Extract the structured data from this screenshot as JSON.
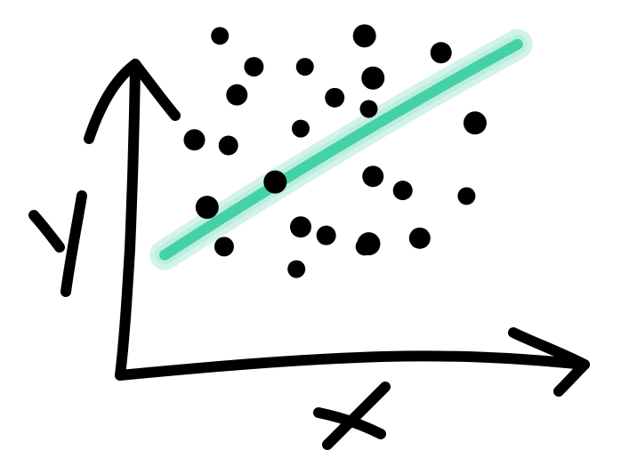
{
  "chart_data": {
    "type": "scatter",
    "style": "hand-drawn sketch",
    "xlabel": "X",
    "ylabel": "Y",
    "title": "",
    "xlim": [
      0,
      10
    ],
    "ylim": [
      0,
      10
    ],
    "grid": false,
    "legend": "none",
    "point_color": "#000000",
    "trend_color": "#44d1a8",
    "trend_glow_color": "#b9ecdc",
    "axis_color": "#000000",
    "points": [
      {
        "x": 2.2,
        "y": 9.8
      },
      {
        "x": 5.6,
        "y": 9.8
      },
      {
        "x": 7.4,
        "y": 9.2
      },
      {
        "x": 3.0,
        "y": 8.7
      },
      {
        "x": 4.2,
        "y": 8.7
      },
      {
        "x": 5.8,
        "y": 8.3
      },
      {
        "x": 2.6,
        "y": 7.7
      },
      {
        "x": 4.9,
        "y": 7.6
      },
      {
        "x": 5.7,
        "y": 7.2
      },
      {
        "x": 8.2,
        "y": 6.7
      },
      {
        "x": 1.6,
        "y": 6.1
      },
      {
        "x": 2.4,
        "y": 5.9
      },
      {
        "x": 4.1,
        "y": 6.5
      },
      {
        "x": 3.5,
        "y": 4.6
      },
      {
        "x": 5.8,
        "y": 4.8
      },
      {
        "x": 6.5,
        "y": 4.3
      },
      {
        "x": 8.0,
        "y": 4.1
      },
      {
        "x": 1.9,
        "y": 3.7
      },
      {
        "x": 4.1,
        "y": 3.0
      },
      {
        "x": 4.7,
        "y": 2.7
      },
      {
        "x": 5.6,
        "y": 2.3
      },
      {
        "x": 5.7,
        "y": 2.4
      },
      {
        "x": 6.9,
        "y": 2.6
      },
      {
        "x": 2.3,
        "y": 2.3
      },
      {
        "x": 4.0,
        "y": 1.5
      }
    ],
    "trendline": {
      "x": [
        0.9,
        9.2
      ],
      "y": [
        2.0,
        9.5
      ]
    }
  }
}
